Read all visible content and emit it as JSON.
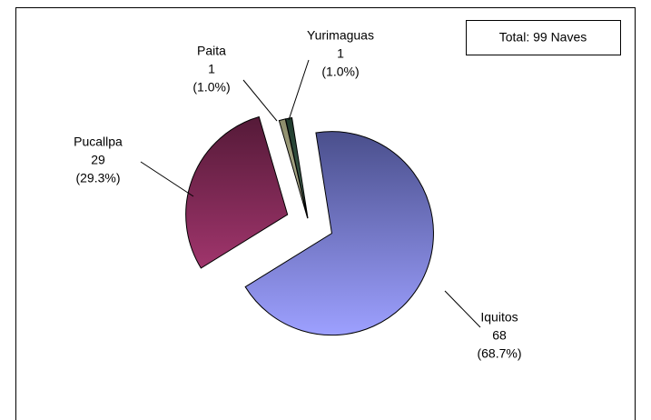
{
  "chart_data": {
    "type": "pie",
    "annotation": "Total: 99 Naves",
    "categories": [
      "Iquitos",
      "Pucallpa",
      "Paita",
      "Yurimaguas"
    ],
    "values": [
      68,
      29,
      1,
      1
    ],
    "percentages": [
      {
        "value": 68.7,
        "label": "(68.7%)"
      },
      {
        "value": 29.3,
        "label": "(29.3%)"
      },
      {
        "value": 1.0,
        "label": "(1.0%)"
      },
      {
        "value": 1.0,
        "label": "(1.0%)"
      }
    ],
    "colors": [
      [
        "#4a4f8c",
        "#9da0ff"
      ],
      [
        "#551a38",
        "#a0356c"
      ],
      [
        "#8c8c6a",
        "#b8b89a"
      ],
      [
        "#1f3a2c",
        "#4a6a58"
      ]
    ]
  }
}
